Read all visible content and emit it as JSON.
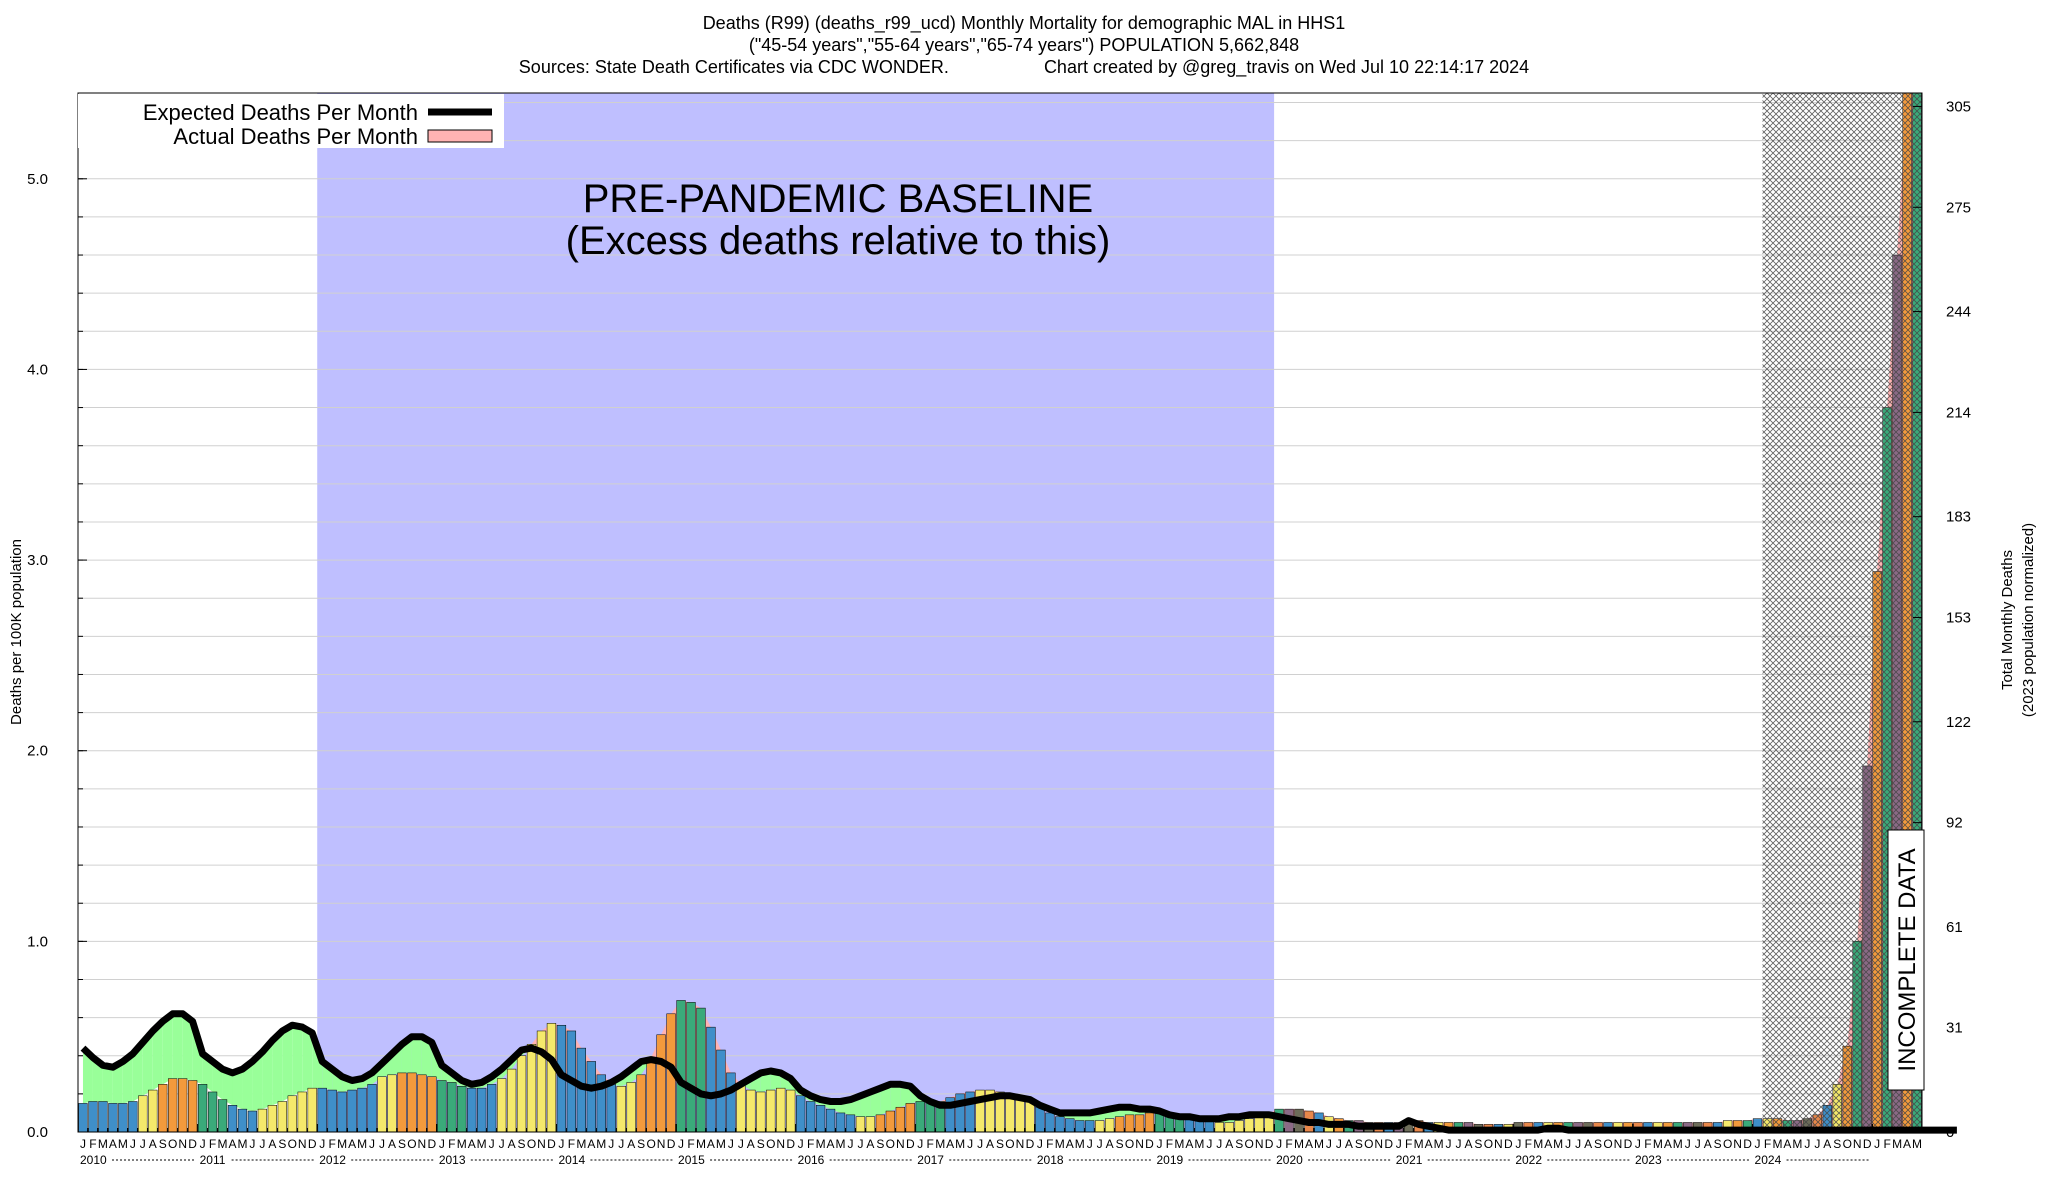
{
  "header": {
    "title_line1": "Deaths (R99) (deaths_r99_ucd) Monthly Mortality for demographic MAL in HHS1",
    "title_line2": "(\"45-54 years\",\"55-64 years\",\"65-74 years\") POPULATION 5,662,848",
    "title_line3_left": "Sources: State Death Certificates via CDC WONDER.",
    "title_line3_right": "Chart created by @greg_travis on Wed Jul 10 22:14:17 2024"
  },
  "legend": {
    "expected_label": "Expected Deaths Per Month",
    "actual_label": "Actual Deaths Per Month"
  },
  "annotations": {
    "baseline_line1": "PRE-PANDEMIC BASELINE",
    "baseline_line2": "(Excess deaths relative to this)",
    "incomplete": "INCOMPLETE DATA"
  },
  "colors": {
    "baseline_region": "#bfbfff",
    "excess_fill": "#99ff99",
    "actual_fill": "#ffb3b3",
    "expected_line": "#000000",
    "bar_palette": [
      "#3f8fc9",
      "#f5e96b",
      "#f39a3c",
      "#3aaa7a",
      "#8b6a86",
      "#6d6d5a",
      "#e8874a"
    ]
  },
  "chart_data": {
    "type": "bar",
    "title": "Deaths (R99) (deaths_r99_ucd) Monthly Mortality for demographic MAL in HHS1",
    "ylabel": "Deaths per 100K population",
    "ylabel_right_line1": "Total Monthly Deaths",
    "ylabel_right_line2": "(2023 population normalized)",
    "ylim": [
      0,
      5.45
    ],
    "y_ticks": [
      "0.0",
      "1.0",
      "2.0",
      "3.0",
      "4.0",
      "5.0"
    ],
    "y_tick_values": [
      0,
      1,
      2,
      3,
      4,
      5
    ],
    "y2_ticks": [
      "0",
      "31",
      "61",
      "92",
      "122",
      "153",
      "183",
      "214",
      "244",
      "275",
      "305"
    ],
    "y2_tick_values": [
      0,
      0.5469,
      1.0759,
      1.6228,
      2.1518,
      2.6987,
      3.2277,
      3.7746,
      4.3036,
      4.8506,
      5.3796
    ],
    "month_letters": [
      "J",
      "F",
      "M",
      "A",
      "M",
      "J",
      "J",
      "A",
      "S",
      "O",
      "N",
      "D"
    ],
    "years": [
      "2010",
      "2011",
      "2012",
      "2013",
      "2014",
      "2015",
      "2016",
      "2017",
      "2018",
      "2019",
      "2020",
      "2021",
      "2022",
      "2023",
      "2024"
    ],
    "start": "2010-01",
    "baseline_start": "2012-01",
    "baseline_end": "2020-01",
    "incomplete_start": "2024-02",
    "grid": true,
    "legend_position": "top-left",
    "actual": [
      0.15,
      0.16,
      0.16,
      0.15,
      0.15,
      0.16,
      0.19,
      0.22,
      0.25,
      0.28,
      0.28,
      0.27,
      0.25,
      0.21,
      0.17,
      0.14,
      0.12,
      0.11,
      0.12,
      0.14,
      0.16,
      0.19,
      0.21,
      0.23,
      0.23,
      0.22,
      0.21,
      0.22,
      0.23,
      0.25,
      0.29,
      0.3,
      0.31,
      0.31,
      0.3,
      0.29,
      0.27,
      0.26,
      0.24,
      0.23,
      0.23,
      0.25,
      0.28,
      0.33,
      0.4,
      0.46,
      0.53,
      0.57,
      0.56,
      0.53,
      0.44,
      0.37,
      0.3,
      0.25,
      0.24,
      0.26,
      0.3,
      0.39,
      0.51,
      0.62,
      0.69,
      0.68,
      0.65,
      0.55,
      0.43,
      0.31,
      0.25,
      0.22,
      0.21,
      0.22,
      0.23,
      0.22,
      0.19,
      0.16,
      0.14,
      0.12,
      0.1,
      0.09,
      0.08,
      0.08,
      0.09,
      0.11,
      0.13,
      0.15,
      0.16,
      0.16,
      0.16,
      0.18,
      0.2,
      0.21,
      0.22,
      0.22,
      0.21,
      0.2,
      0.18,
      0.16,
      0.13,
      0.1,
      0.08,
      0.07,
      0.06,
      0.06,
      0.06,
      0.07,
      0.08,
      0.09,
      0.09,
      0.1,
      0.1,
      0.09,
      0.09,
      0.08,
      0.07,
      0.06,
      0.05,
      0.05,
      0.06,
      0.07,
      0.09,
      0.1,
      0.12,
      0.12,
      0.12,
      0.11,
      0.1,
      0.08,
      0.07,
      0.06,
      0.06,
      0.05,
      0.05,
      0.05,
      0.05,
      0.06,
      0.06,
      0.05,
      0.05,
      0.05,
      0.05,
      0.05,
      0.04,
      0.04,
      0.04,
      0.04,
      0.05,
      0.05,
      0.05,
      0.05,
      0.05,
      0.05,
      0.05,
      0.05,
      0.05,
      0.05,
      0.05,
      0.05,
      0.05,
      0.05,
      0.05,
      0.05,
      0.05,
      0.05,
      0.05,
      0.05,
      0.05,
      0.06,
      0.06,
      0.06,
      0.07,
      0.07,
      0.07,
      0.06,
      0.06,
      0.07,
      0.09,
      0.14,
      0.25,
      0.45,
      1.0,
      1.92,
      2.94,
      3.8,
      4.6,
      5.45,
      5.45
    ],
    "expected": [
      0.44,
      0.39,
      0.35,
      0.34,
      0.37,
      0.41,
      0.47,
      0.53,
      0.58,
      0.62,
      0.62,
      0.58,
      0.41,
      0.37,
      0.33,
      0.31,
      0.33,
      0.37,
      0.42,
      0.48,
      0.53,
      0.56,
      0.55,
      0.52,
      0.37,
      0.33,
      0.29,
      0.27,
      0.28,
      0.31,
      0.36,
      0.41,
      0.46,
      0.5,
      0.5,
      0.47,
      0.35,
      0.31,
      0.27,
      0.25,
      0.26,
      0.29,
      0.33,
      0.38,
      0.43,
      0.44,
      0.42,
      0.38,
      0.3,
      0.27,
      0.24,
      0.23,
      0.24,
      0.26,
      0.29,
      0.33,
      0.37,
      0.38,
      0.37,
      0.34,
      0.26,
      0.23,
      0.2,
      0.19,
      0.2,
      0.22,
      0.25,
      0.28,
      0.31,
      0.32,
      0.31,
      0.28,
      0.22,
      0.19,
      0.17,
      0.16,
      0.16,
      0.17,
      0.19,
      0.21,
      0.23,
      0.25,
      0.25,
      0.24,
      0.19,
      0.16,
      0.14,
      0.14,
      0.15,
      0.16,
      0.17,
      0.18,
      0.19,
      0.19,
      0.18,
      0.17,
      0.14,
      0.12,
      0.1,
      0.1,
      0.1,
      0.1,
      0.11,
      0.12,
      0.13,
      0.13,
      0.12,
      0.12,
      0.11,
      0.09,
      0.08,
      0.08,
      0.07,
      0.07,
      0.07,
      0.08,
      0.08,
      0.09,
      0.09,
      0.09,
      0.08,
      0.07,
      0.06,
      0.05,
      0.05,
      0.04,
      0.04,
      0.04,
      0.03,
      0.03,
      0.03,
      0.03,
      0.03,
      0.06,
      0.04,
      0.03,
      0.02,
      0.01,
      0.01,
      0.01,
      0.01,
      0.01,
      0.01,
      0.01,
      0.01,
      0.01,
      0.01,
      0.02,
      0.02,
      0.01,
      0.01,
      0.01,
      0.01,
      0.01,
      0.01,
      0.01,
      0.01,
      0.01,
      0.01,
      0.01,
      0.01,
      0.01,
      0.01,
      0.01,
      0.01,
      0.01,
      0.01,
      0.01,
      0.01,
      0.01,
      0.01,
      0.01,
      0.01,
      0.01,
      0.01,
      0.01,
      0.01,
      0.01,
      0.01,
      0.01,
      0.01,
      0.01,
      0.01,
      0.01,
      0.01,
      0.01,
      0.01,
      0.01,
      0.01
    ]
  }
}
